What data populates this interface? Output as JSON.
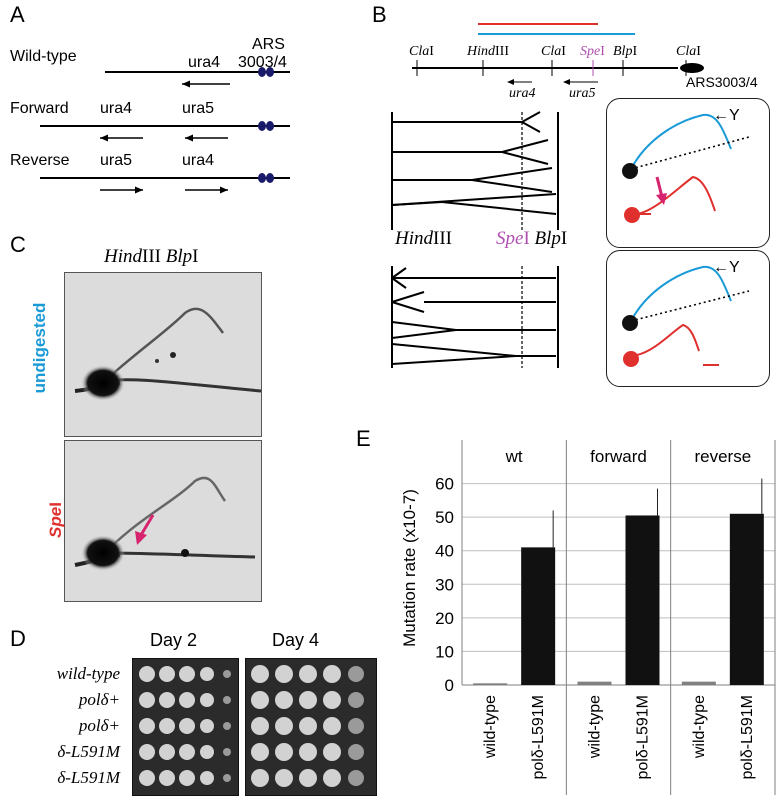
{
  "panels": {
    "a": "A",
    "b": "B",
    "c": "C",
    "d": "D",
    "e": "E"
  },
  "panel_a": {
    "rows": [
      {
        "name": "Wild-type",
        "genes": [
          "ura4"
        ],
        "ars": "ARS",
        "ars2": "3003/4"
      },
      {
        "name": "Forward",
        "genes": [
          "ura4",
          "ura5"
        ]
      },
      {
        "name": "Reverse",
        "genes": [
          "ura5",
          "ura4"
        ]
      }
    ]
  },
  "panel_b": {
    "sites": [
      "ClaI",
      "HindIII",
      "ClaI",
      "SpeI",
      "BlpI",
      "ClaI"
    ],
    "site_parts": {
      "cla1_a": "Cla",
      "cla1_b": "I",
      "hind_a": "Hind",
      "hind_b": "III",
      "cla2_a": "Cla",
      "cla2_b": "I",
      "spe_a": "Spe",
      "spe_b": "I",
      "blp_a": "Blp",
      "blp_b": "I",
      "cla3_a": "Cla",
      "cla3_b": "I"
    },
    "genes": [
      "ura4",
      "ura5"
    ],
    "ars": "ARS3003/4",
    "middle_hind": "HindIII",
    "middle_hind_a": "Hind",
    "middle_hind_b": "III",
    "middle_spe_a": "Spe",
    "middle_spe_b": "I",
    "middle_blp_a": "Blp",
    "middle_blp_b": "I",
    "y_label_1": "←Y",
    "y_label_2": "←Y",
    "colors": {
      "red": "#e0302e",
      "blue": "#1a9bd7",
      "magenta": "#d6246e",
      "pink_site": "#b04fb0"
    }
  },
  "panel_c": {
    "title_a": "Hind",
    "title_b": "III ",
    "title_c": "Blp",
    "title_d": "I",
    "gel_top_label": "undigested",
    "gel_bottom_label": "SpeI",
    "gel_bottom_label_a": "Spe",
    "gel_bottom_label_b": "I"
  },
  "panel_d": {
    "day2": "Day 2",
    "day4": "Day 4",
    "strains": [
      "wild-type",
      "polδ+",
      "polδ+",
      "δ-L591M",
      "δ-L591M"
    ]
  },
  "chart_data": {
    "type": "bar",
    "groups": [
      "wt",
      "forward",
      "reverse"
    ],
    "categories": [
      "wild-type",
      "polδ-L591M",
      "wild-type",
      "polδ-L591M",
      "wild-type",
      "polδ-L591M"
    ],
    "values": [
      0.5,
      41,
      1,
      50.5,
      1,
      51
    ],
    "errors": [
      0,
      11,
      0,
      8,
      0,
      10.5
    ],
    "ylabel": "Mutation rate (x10-7)",
    "ylim": [
      0,
      70
    ],
    "yticks": [
      0,
      10,
      20,
      30,
      40,
      50,
      60
    ],
    "grid": true
  }
}
